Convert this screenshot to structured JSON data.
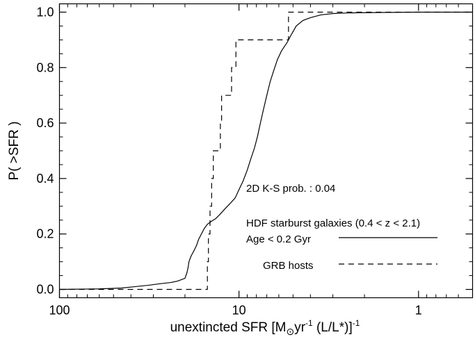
{
  "chart_data": {
    "type": "line",
    "x_axis": {
      "label_main": "unextincted SFR [M",
      "label_sub_sun": "⊙",
      "label_yr": "yr",
      "label_exp1": "-1",
      "label_mid": " (L/L*)",
      "label_close": "]",
      "label_exp2": "-1",
      "scale": "log",
      "reversed": true,
      "range": [
        100,
        0.5
      ],
      "ticks": [
        {
          "value": 100,
          "label": "100"
        },
        {
          "value": 10,
          "label": "10"
        },
        {
          "value": 1,
          "label": "1"
        }
      ]
    },
    "y_axis": {
      "label": "P( >SFR )",
      "range": [
        -0.03,
        1.03
      ],
      "ticks": [
        {
          "value": 0.0,
          "label": "0.0"
        },
        {
          "value": 0.2,
          "label": "0.2"
        },
        {
          "value": 0.4,
          "label": "0.4"
        },
        {
          "value": 0.6,
          "label": "0.6"
        },
        {
          "value": 0.8,
          "label": "0.8"
        },
        {
          "value": 1.0,
          "label": "1.0"
        }
      ]
    },
    "annotations": {
      "ks_prob": "2D K-S prob. : 0.04",
      "hdf_label": "HDF starburst galaxies (0.4 < z < 2.1)",
      "age_label": "Age < 0.2 Gyr",
      "grb_label": "GRB hosts"
    },
    "series": [
      {
        "name": "HDF starburst galaxies (0.4 < z < 2.1) Age < 0.2 Gyr",
        "style": "solid",
        "points": [
          [
            100,
            0.0
          ],
          [
            60,
            0.002
          ],
          [
            45,
            0.005
          ],
          [
            38,
            0.01
          ],
          [
            32,
            0.015
          ],
          [
            28,
            0.02
          ],
          [
            24,
            0.025
          ],
          [
            22,
            0.03
          ],
          [
            20,
            0.04
          ],
          [
            19.5,
            0.06
          ],
          [
            19.2,
            0.08
          ],
          [
            19.0,
            0.1
          ],
          [
            18.5,
            0.12
          ],
          [
            17.8,
            0.14
          ],
          [
            17.2,
            0.16
          ],
          [
            16.8,
            0.18
          ],
          [
            16.2,
            0.2
          ],
          [
            15.6,
            0.22
          ],
          [
            15.0,
            0.235
          ],
          [
            14.3,
            0.245
          ],
          [
            13.5,
            0.255
          ],
          [
            12.8,
            0.27
          ],
          [
            12.0,
            0.29
          ],
          [
            11.2,
            0.31
          ],
          [
            10.5,
            0.33
          ],
          [
            10.0,
            0.36
          ],
          [
            9.5,
            0.39
          ],
          [
            9.0,
            0.43
          ],
          [
            8.6,
            0.47
          ],
          [
            8.2,
            0.51
          ],
          [
            7.9,
            0.55
          ],
          [
            7.6,
            0.6
          ],
          [
            7.3,
            0.65
          ],
          [
            7.0,
            0.7
          ],
          [
            6.7,
            0.75
          ],
          [
            6.4,
            0.79
          ],
          [
            6.1,
            0.83
          ],
          [
            5.8,
            0.86
          ],
          [
            5.4,
            0.89
          ],
          [
            5.1,
            0.92
          ],
          [
            4.8,
            0.95
          ],
          [
            4.4,
            0.97
          ],
          [
            4.0,
            0.98
          ],
          [
            3.5,
            0.99
          ],
          [
            3.0,
            0.995
          ],
          [
            2.5,
            0.997
          ],
          [
            2.0,
            0.998
          ],
          [
            1.5,
            0.999
          ],
          [
            1.0,
            1.0
          ],
          [
            0.7,
            1.0
          ],
          [
            0.5,
            1.0
          ]
        ]
      },
      {
        "name": "GRB hosts",
        "style": "dashed",
        "steps": [
          [
            100,
            0.0
          ],
          [
            15.0,
            0.0
          ],
          [
            15.0,
            0.1
          ],
          [
            14.8,
            0.1
          ],
          [
            14.8,
            0.2
          ],
          [
            14.5,
            0.2
          ],
          [
            14.5,
            0.3
          ],
          [
            14.2,
            0.3
          ],
          [
            14.2,
            0.4
          ],
          [
            13.9,
            0.4
          ],
          [
            13.9,
            0.5
          ],
          [
            12.7,
            0.5
          ],
          [
            12.7,
            0.6
          ],
          [
            12.5,
            0.6
          ],
          [
            12.5,
            0.7
          ],
          [
            11.0,
            0.7
          ],
          [
            11.0,
            0.8
          ],
          [
            10.4,
            0.8
          ],
          [
            10.4,
            0.9
          ],
          [
            5.3,
            0.9
          ],
          [
            5.3,
            1.0
          ],
          [
            0.5,
            1.0
          ]
        ]
      }
    ]
  }
}
